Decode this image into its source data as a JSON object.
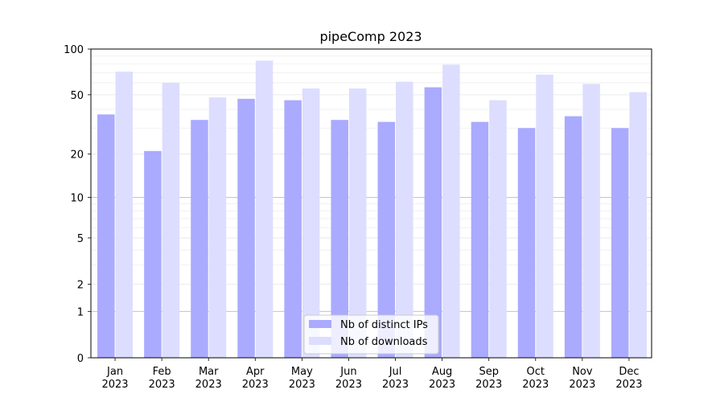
{
  "chart_data": {
    "type": "bar",
    "title": "pipeComp 2023",
    "xlabel": "",
    "ylabel": "",
    "yscale": "log1p",
    "ylim": [
      0,
      100
    ],
    "yticks": [
      0,
      1,
      2,
      5,
      10,
      20,
      50,
      100
    ],
    "grid": "horizontal",
    "legend_position": "bottom-center",
    "categories": [
      [
        "Jan",
        "2023"
      ],
      [
        "Feb",
        "2023"
      ],
      [
        "Mar",
        "2023"
      ],
      [
        "Apr",
        "2023"
      ],
      [
        "May",
        "2023"
      ],
      [
        "Jun",
        "2023"
      ],
      [
        "Jul",
        "2023"
      ],
      [
        "Aug",
        "2023"
      ],
      [
        "Sep",
        "2023"
      ],
      [
        "Oct",
        "2023"
      ],
      [
        "Nov",
        "2023"
      ],
      [
        "Dec",
        "2023"
      ]
    ],
    "series": [
      {
        "name": "Nb of distinct IPs",
        "color": "#aaaaff",
        "values": [
          37,
          21,
          34,
          47,
          46,
          34,
          33,
          56,
          33,
          30,
          36,
          30
        ]
      },
      {
        "name": "Nb of downloads",
        "color": "#ddddff",
        "values": [
          71,
          60,
          48,
          84,
          55,
          55,
          61,
          79,
          46,
          68,
          59,
          52
        ]
      }
    ]
  }
}
